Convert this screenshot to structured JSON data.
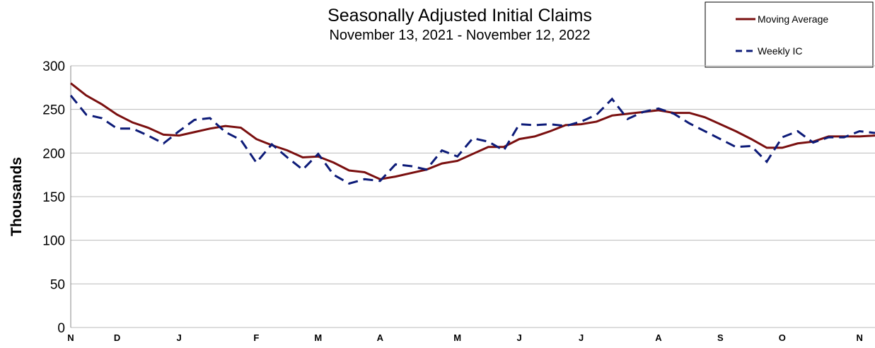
{
  "chart_data": {
    "type": "line",
    "title": "Seasonally Adjusted Initial Claims",
    "subtitle": "November 13, 2021 - November 12, 2022",
    "y_label": "Thousands",
    "categories": [
      "N",
      null,
      null,
      "D",
      null,
      null,
      null,
      "J",
      null,
      null,
      null,
      null,
      "F",
      null,
      null,
      null,
      "M",
      null,
      null,
      null,
      "A",
      null,
      null,
      null,
      null,
      "M",
      null,
      null,
      null,
      "J",
      null,
      null,
      null,
      "J",
      null,
      null,
      null,
      null,
      "A",
      null,
      null,
      null,
      "S",
      null,
      null,
      null,
      "O",
      null,
      null,
      null,
      null,
      "N",
      null
    ],
    "series": [
      {
        "name": "Moving Average",
        "color": "#7a0f0f",
        "dash": false,
        "values": [
          280,
          266,
          256,
          244,
          235,
          229,
          221,
          220,
          224,
          228,
          231,
          229,
          216,
          209,
          203,
          195,
          196,
          189,
          180,
          178,
          170,
          173,
          177,
          181,
          188,
          191,
          199,
          207,
          207,
          216,
          219,
          225,
          232,
          233,
          236,
          243,
          245,
          247,
          249,
          246,
          246,
          241,
          233,
          225,
          216,
          206,
          206,
          211,
          213,
          219,
          219,
          219,
          220
        ]
      },
      {
        "name": "Weekly IC",
        "color": "#0d1b78",
        "dash": true,
        "values": [
          266,
          244,
          240,
          228,
          228,
          220,
          211,
          225,
          238,
          240,
          224,
          215,
          189,
          210,
          195,
          181,
          199,
          175,
          165,
          170,
          168,
          187,
          185,
          181,
          203,
          196,
          217,
          213,
          203,
          233,
          232,
          233,
          231,
          236,
          244,
          262,
          239,
          247,
          251,
          245,
          234,
          225,
          216,
          207,
          208,
          190,
          218,
          225,
          212,
          218,
          218,
          225,
          223
        ]
      }
    ],
    "ylim": [
      0,
      300
    ],
    "yticks": [
      0,
      50,
      100,
      150,
      200,
      250,
      300
    ],
    "grid": true
  }
}
